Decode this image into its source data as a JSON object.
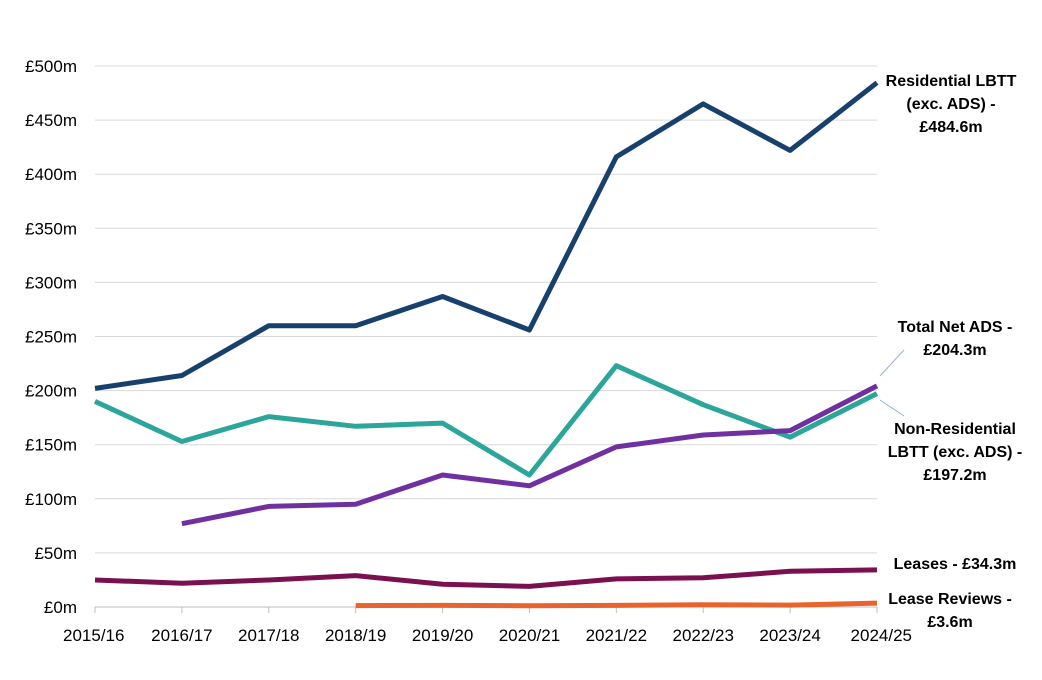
{
  "chart_data": {
    "type": "line",
    "x": [
      "2015/16",
      "2016/17",
      "2017/18",
      "2018/19",
      "2019/20",
      "2020/21",
      "2021/22",
      "2022/23",
      "2023/24",
      "2024/25"
    ],
    "y_ticks": [
      "£0m",
      "£50m",
      "£100m",
      "£150m",
      "£200m",
      "£250m",
      "£300m",
      "£350m",
      "£400m",
      "£450m",
      "£500m"
    ],
    "ylim": [
      0,
      500
    ],
    "grid": true,
    "series": [
      {
        "name": "Residential LBTT (exc. ADS) - £484.6m",
        "label_lines": [
          "Residential LBTT",
          "(exc. ADS) -",
          "£484.6m"
        ],
        "color": "#17406D",
        "values": [
          202,
          214,
          260,
          260,
          287,
          256,
          416,
          465,
          422,
          484.6
        ]
      },
      {
        "name": "Non-Residential LBTT (exc. ADS) - £197.2m",
        "label_lines": [
          "Non-Residential",
          "LBTT (exc. ADS) -",
          "£197.2m"
        ],
        "color": "#2CA59A",
        "values": [
          190,
          153,
          176,
          167,
          170,
          122,
          223,
          187,
          157,
          197.2
        ]
      },
      {
        "name": "Total Net ADS - £204.3m",
        "label_lines": [
          "Total Net ADS -",
          "£204.3m"
        ],
        "color": "#7030A0",
        "values": [
          null,
          77,
          93,
          95,
          122,
          112,
          148,
          159,
          163,
          204.3
        ]
      },
      {
        "name": "Leases - £34.3m",
        "label_lines": [
          "Leases - £34.3m"
        ],
        "color": "#7B1050",
        "values": [
          25,
          22,
          25,
          29,
          21,
          19,
          26,
          27,
          33,
          34.3
        ]
      },
      {
        "name": "Lease Reviews - £3.6m",
        "label_lines": [
          "Lease Reviews -",
          "£3.6m"
        ],
        "color": "#E8642C",
        "values": [
          null,
          null,
          null,
          1.3,
          1.5,
          1.2,
          1.5,
          2.0,
          1.8,
          3.6
        ]
      }
    ]
  }
}
